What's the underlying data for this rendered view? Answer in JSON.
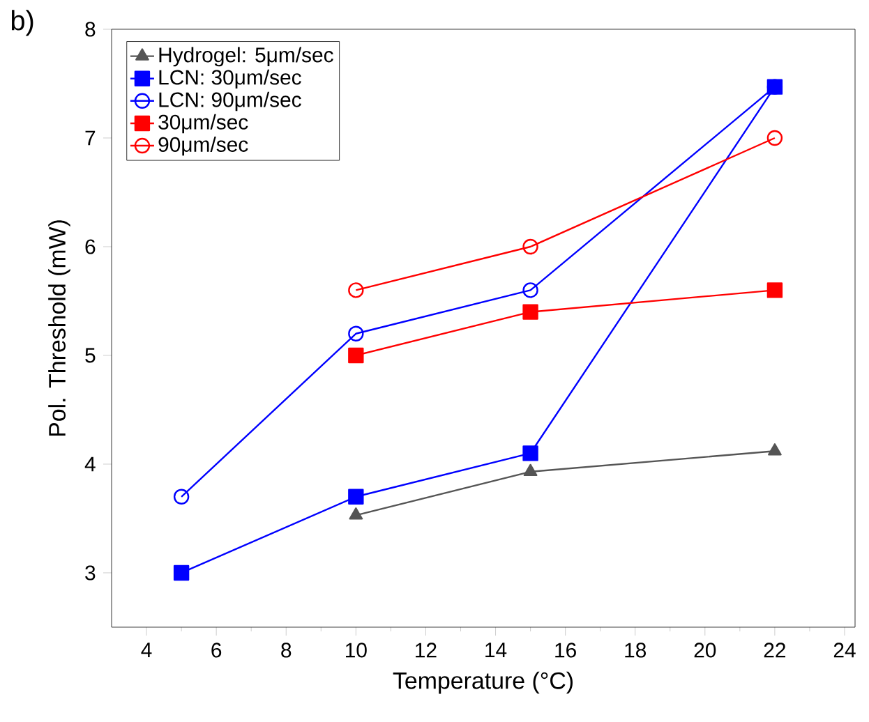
{
  "chart_data": {
    "type": "line",
    "xlabel": "Temperature (°C)",
    "ylabel": "Pol. Threshold (mW)",
    "annotations": [
      "b)"
    ],
    "xlim": [
      3,
      24.3
    ],
    "ylim": [
      2.5,
      8
    ],
    "xticks": [
      4,
      6,
      8,
      10,
      12,
      14,
      16,
      18,
      20,
      22,
      24
    ],
    "yticks": [
      3,
      4,
      5,
      6,
      7,
      8
    ],
    "grid": false,
    "legend": "top left",
    "line_style": "solid",
    "series": [
      {
        "name": "Hydrogel: 5μm/sec",
        "color": "#555555",
        "marker": "triangle",
        "x": [
          10,
          15,
          22
        ],
        "values": [
          3.53,
          3.93,
          4.12
        ]
      },
      {
        "name": "LCN: 30μm/sec",
        "color": "#0000ff",
        "marker": "square",
        "x": [
          5,
          10,
          15,
          22
        ],
        "values": [
          3.0,
          3.7,
          4.1,
          7.47
        ]
      },
      {
        "name": "LCN: 90μm/sec",
        "color": "#0000ff",
        "marker": "circle",
        "x": [
          5,
          10,
          15,
          22
        ],
        "values": [
          3.7,
          5.2,
          5.6,
          7.47
        ]
      },
      {
        "name": "30μm/sec",
        "color": "#ff0000",
        "marker": "square",
        "x": [
          10,
          15,
          22
        ],
        "values": [
          5.0,
          5.4,
          5.6
        ]
      },
      {
        "name": "90μm/sec",
        "color": "#ff0000",
        "marker": "circle",
        "x": [
          10,
          15,
          22
        ],
        "values": [
          5.6,
          6.0,
          7.0
        ]
      }
    ]
  }
}
